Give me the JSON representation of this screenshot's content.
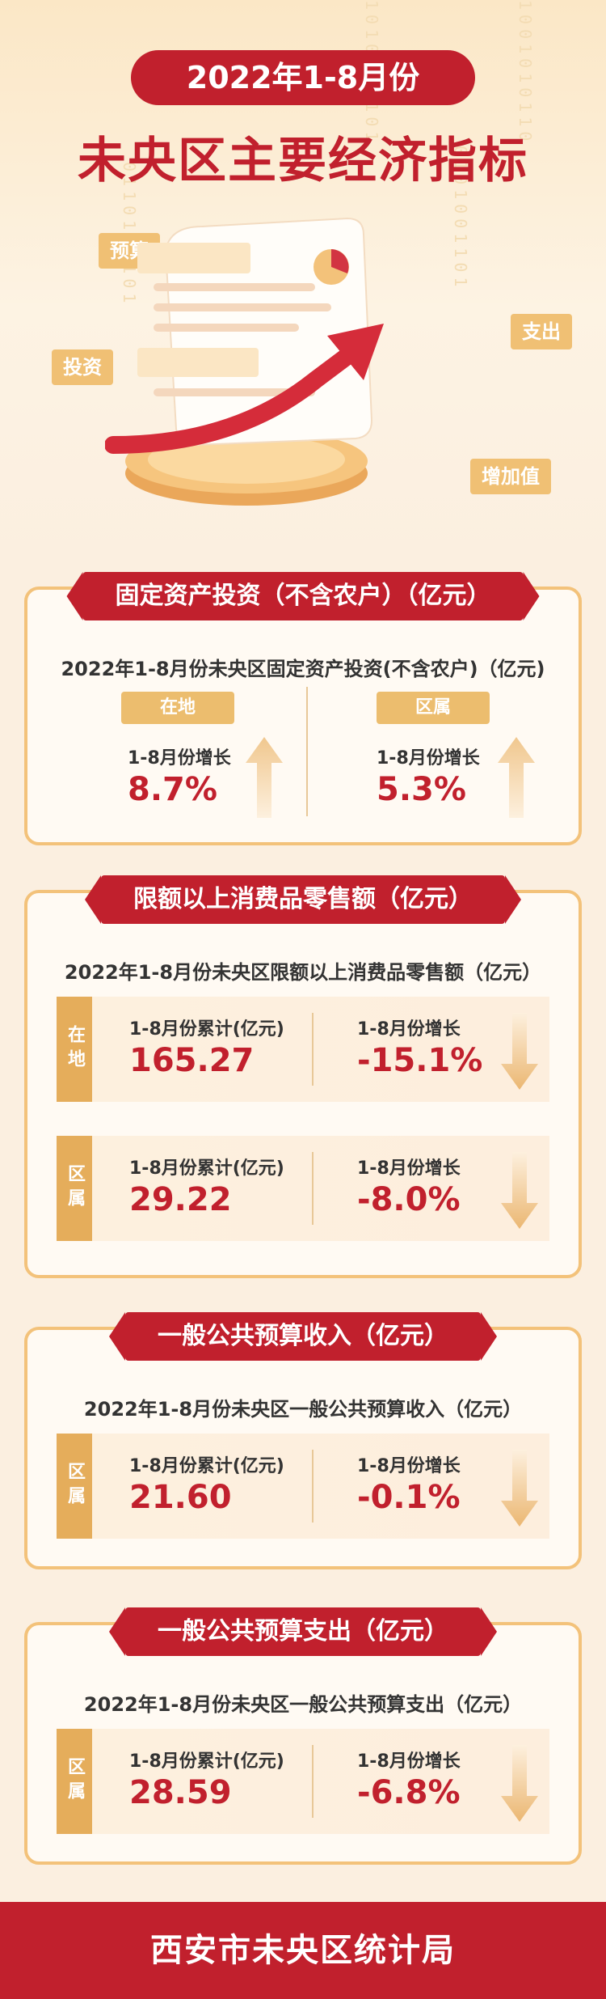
{
  "header": {
    "date_label": "2022年1-8月份",
    "title": "未央区主要经济指标",
    "tags": {
      "budget": "预算",
      "investment": "投资",
      "expenditure": "支出",
      "value_added": "增加值"
    }
  },
  "sections": [
    {
      "heading": "固定资产投资（不含农户）（亿元）",
      "subtitle": "2022年1-8月份未央区固定资产投资(不含农户)（亿元)",
      "left": {
        "tag": "在地",
        "label": "1-8月份增长",
        "value": "8.7%",
        "trend": "up"
      },
      "right": {
        "tag": "区属",
        "label": "1-8月份增长",
        "value": "5.3%",
        "trend": "up"
      }
    },
    {
      "heading": "限额以上消费品零售额（亿元）",
      "subtitle": "2022年1-8月份未央区限额以上消费品零售额（亿元）",
      "rows": [
        {
          "tag": "在地",
          "total_label": "1-8月份累计(亿元)",
          "total": "165.27",
          "growth_label": "1-8月份增长",
          "growth": "-15.1%",
          "trend": "down"
        },
        {
          "tag": "区属",
          "total_label": "1-8月份累计(亿元)",
          "total": "29.22",
          "growth_label": "1-8月份增长",
          "growth": "-8.0%",
          "trend": "down"
        }
      ]
    },
    {
      "heading": "一般公共预算收入（亿元）",
      "subtitle": "2022年1-8月份未央区一般公共预算收入（亿元）",
      "rows": [
        {
          "tag": "区属",
          "total_label": "1-8月份累计(亿元)",
          "total": "21.60",
          "growth_label": "1-8月份增长",
          "growth": "-0.1%",
          "trend": "down"
        }
      ]
    },
    {
      "heading": "一般公共预算支出（亿元）",
      "subtitle": "2022年1-8月份未央区一般公共预算支出（亿元）",
      "rows": [
        {
          "tag": "区属",
          "total_label": "1-8月份累计(亿元)",
          "total": "28.59",
          "growth_label": "1-8月份增长",
          "growth": "-6.8%",
          "trend": "down"
        }
      ]
    }
  ],
  "footer": {
    "org": "西安市未央区统计局"
  },
  "colors": {
    "primary_red": "#c1202d",
    "gold": "#ecbd6e",
    "arrow_gold": "#f0c78e"
  }
}
